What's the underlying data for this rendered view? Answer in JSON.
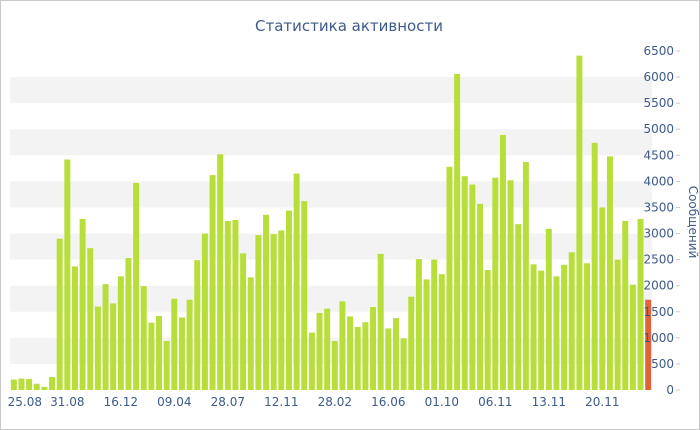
{
  "chart_data": {
    "type": "bar",
    "title": "Статистика активности",
    "ylabel": "Сообщений",
    "xlabel": "",
    "ylim": [
      0,
      6500
    ],
    "y_ticks": [
      0,
      500,
      1000,
      1500,
      2000,
      2500,
      3000,
      3500,
      4000,
      4500,
      5000,
      5500,
      6000,
      6500
    ],
    "x_tick_labels": [
      {
        "label": "25.08",
        "index": 0
      },
      {
        "label": "31.08",
        "index": 7
      },
      {
        "label": "16.12",
        "index": 14
      },
      {
        "label": "09.04",
        "index": 21
      },
      {
        "label": "28.07",
        "index": 28
      },
      {
        "label": "12.11",
        "index": 35
      },
      {
        "label": "28.02",
        "index": 42
      },
      {
        "label": "16.06",
        "index": 49
      },
      {
        "label": "01.10",
        "index": 56
      },
      {
        "label": "06.11",
        "index": 63
      },
      {
        "label": "13.11",
        "index": 70
      },
      {
        "label": "20.11",
        "index": 77
      }
    ],
    "series": [
      {
        "color": "#b8de3a",
        "values": [
          200,
          220,
          210,
          120,
          60,
          250,
          2900,
          4420,
          2370,
          3280,
          2720,
          1600,
          2030,
          1660,
          2180,
          2530,
          3970,
          1990,
          1290,
          1420,
          940,
          1750,
          1390,
          1730,
          2490,
          3000,
          4120,
          4520,
          3240,
          3260,
          2620,
          2160,
          2970,
          3360,
          2990,
          3060,
          3440,
          4150,
          3620,
          1100,
          1480,
          1560,
          940,
          1700,
          1410,
          1210,
          1300,
          1590,
          2610,
          1180,
          1380,
          990,
          1790,
          2510,
          2120,
          2500,
          2220,
          4280,
          6060,
          4100,
          3940,
          3570,
          2300,
          4070,
          4890,
          4020,
          3180,
          4370,
          2410,
          2290,
          3090,
          2180,
          2400,
          2640,
          6410,
          2430,
          4740,
          3500,
          4480,
          2500,
          3240,
          2020,
          3280
        ]
      },
      {
        "color": "#e0643a",
        "values": [
          1730
        ]
      }
    ],
    "highlight": {
      "index": 83,
      "value": 1730,
      "color": "#e0643a"
    },
    "grid": "horizontal bands",
    "colors": {
      "bar": "#b8de3a",
      "highlight": "#e0643a",
      "text": "#3e5a8a",
      "band": "#f3f3f3"
    }
  }
}
